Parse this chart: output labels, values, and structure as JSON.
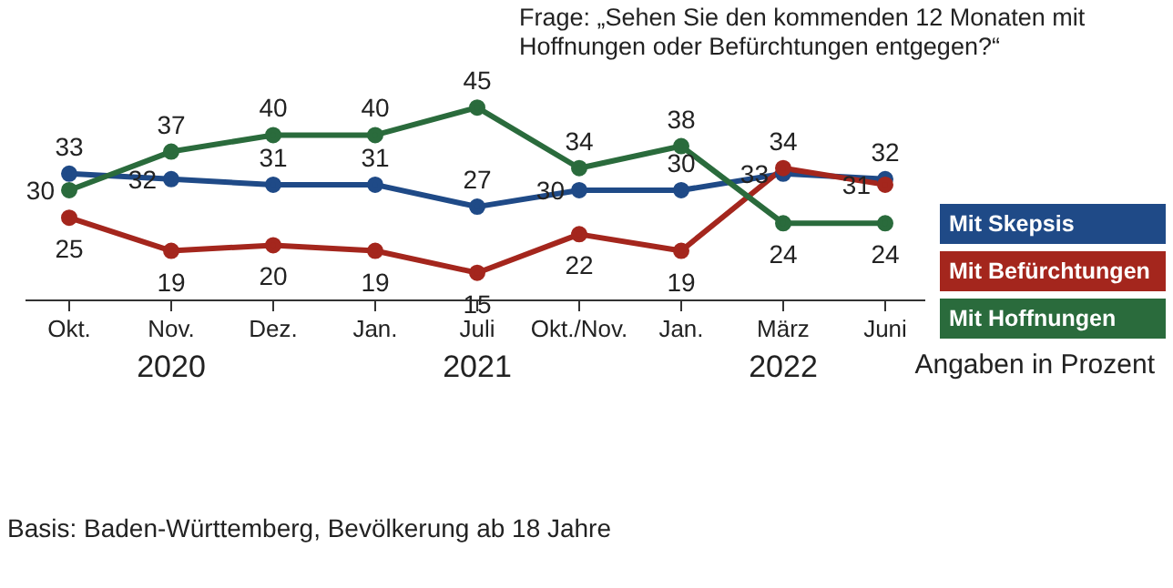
{
  "chart_data": {
    "type": "line",
    "title": "Frage: „Sehen Sie den kommenden 12 Monaten mit Hoffnungen oder Befürchtungen entgegen?“",
    "categories": [
      "Okt.",
      "Nov.",
      "Dez.",
      "Jan.",
      "Juli",
      "Okt./Nov.",
      "Jan.",
      "März",
      "Juni"
    ],
    "series": [
      {
        "name": "Mit Skepsis",
        "color": "#1f4a87",
        "values": [
          33,
          32,
          31,
          31,
          27,
          30,
          30,
          33,
          32
        ]
      },
      {
        "name": "Mit Befürchtungen",
        "color": "#a4261d",
        "values": [
          25,
          19,
          20,
          19,
          15,
          22,
          19,
          34,
          31
        ]
      },
      {
        "name": "Mit Hoffnungen",
        "color": "#2a6b3c",
        "values": [
          30,
          37,
          40,
          40,
          45,
          34,
          38,
          24,
          24
        ]
      }
    ],
    "data_labels": true,
    "marker": "circle",
    "legend": "right",
    "grid": false,
    "annotations": [
      "2020",
      "2021",
      "2022",
      "Angaben in Prozent",
      "Basis: Baden-Württemberg, Bevölkerung ab 18 Jahre"
    ]
  }
}
